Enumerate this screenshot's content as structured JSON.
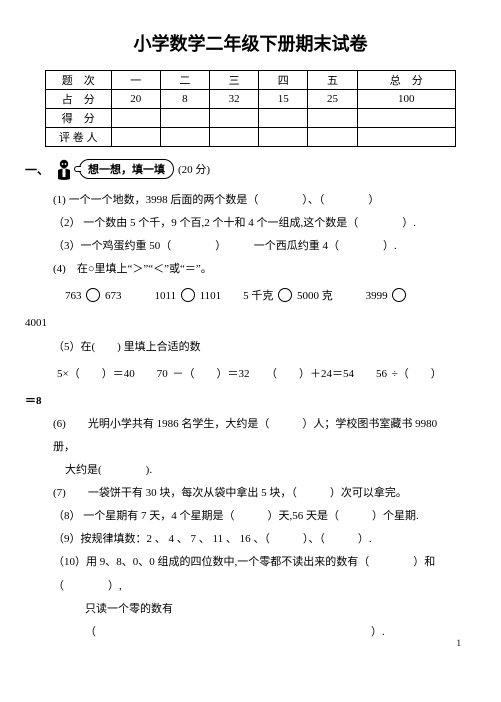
{
  "title": "小学数学二年级下册期末试卷",
  "table": {
    "headers": [
      "题　次",
      "一",
      "二",
      "三",
      "四",
      "五",
      "总　分"
    ],
    "rows": [
      {
        "label": "占　分",
        "cells": [
          "20",
          "8",
          "32",
          "15",
          "25",
          "100"
        ]
      },
      {
        "label": "得　分",
        "cells": [
          "",
          "",
          "",
          "",
          "",
          ""
        ]
      },
      {
        "label": "评 卷 人",
        "cells": [
          "",
          "",
          "",
          "",
          "",
          ""
        ]
      }
    ],
    "col_widths": [
      "16%",
      "12%",
      "12%",
      "12%",
      "12%",
      "12%",
      "24%"
    ]
  },
  "section1": {
    "num": "一、",
    "bubble": "想一想，填一填",
    "pts": "(20 分)"
  },
  "q1": "(1)  一个一个地数，3998 后面的两个数是（　　　　）、（　　　　）",
  "q2": "（2）  一个数由 5 个千，9 个百,2 个十和 4 个一组成,这个数是（　　　　）.",
  "q3": "（3）一个鸡蛋约重 50（　　　　）　　　一个西瓜约重 4（　　　　）.",
  "q4a": "(4)　在○里填上“＞”“＜”或“＝”。",
  "q4b_parts": [
    "763 ",
    " 673　　　1011 ",
    " 1101　　5 千克 ",
    " 5000 克　　　3999 "
  ],
  "q4b_tail": "4001",
  "q5a": "（5）在(　　) 里填上合适的数",
  "q5b": "5×（　　）＝40　　70 －（　　）＝32　　（　　）＋24＝54　　56 ÷（　　）",
  "q5b_tail": "＝8",
  "q6": "(6)　　光明小学共有 1986 名学生，大约是（　　　）人；学校图书室藏书 9980 册，",
  "q6b": "大约是(　　　　).",
  "q7": "(7)　　一袋饼干有 30 块，每次从袋中拿出 5 块，（　　　）次可以拿完。",
  "q8": "（8）  一个星期有 7 天，4 个星期是（　　　）天,56 天是（　　　）个星期.",
  "q9": "（9）按规律填数：2 、 4 、 7 、 11 、 16 、（　　　）、（　　　）.",
  "q10a": "（10）用 9、8、0、0 组成的四位数中,一个零都不读出来的数有（　　　　）和（　　　　）,",
  "q10b": "只读一个零的数有（　　　　　　　　　　　　　　　　　　　　　　　　　）.",
  "pagenum": "1"
}
